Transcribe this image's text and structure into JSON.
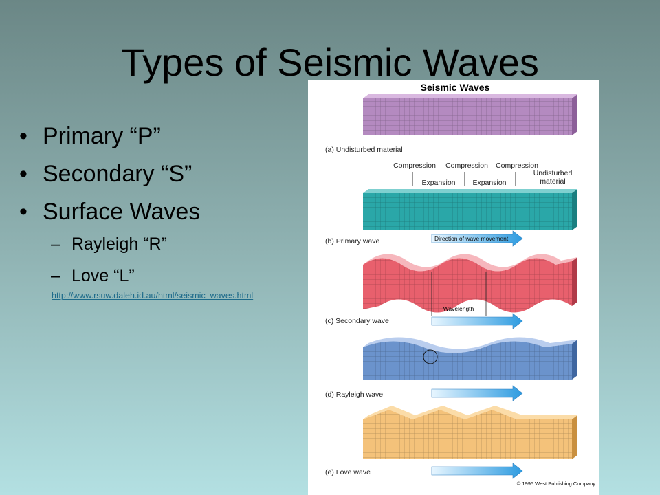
{
  "slide": {
    "title": "Types of Seismic Waves",
    "bullets": [
      "Primary “P”",
      "Secondary “S”",
      "Surface Waves"
    ],
    "sub_bullets": [
      "Rayleigh “R”",
      "Love “L”"
    ],
    "link": "http://www.rsuw.daleh.id.au/html/seismic_waves.html"
  },
  "figure": {
    "title": "Seismic Waves",
    "panels": [
      "(a) Undisturbed material",
      "(b) Primary wave",
      "(c) Secondary wave",
      "(d) Rayleigh wave",
      "(e) Love wave"
    ],
    "compression": [
      "Compression",
      "Compression",
      "Compression"
    ],
    "expansion": [
      "Expansion",
      "Expansion"
    ],
    "undisturbed": [
      "Undisturbed",
      "material"
    ],
    "direction": "Direction of wave movement",
    "wavelength": "Wavelength",
    "copyright": "© 1995 West Publishing Company"
  }
}
